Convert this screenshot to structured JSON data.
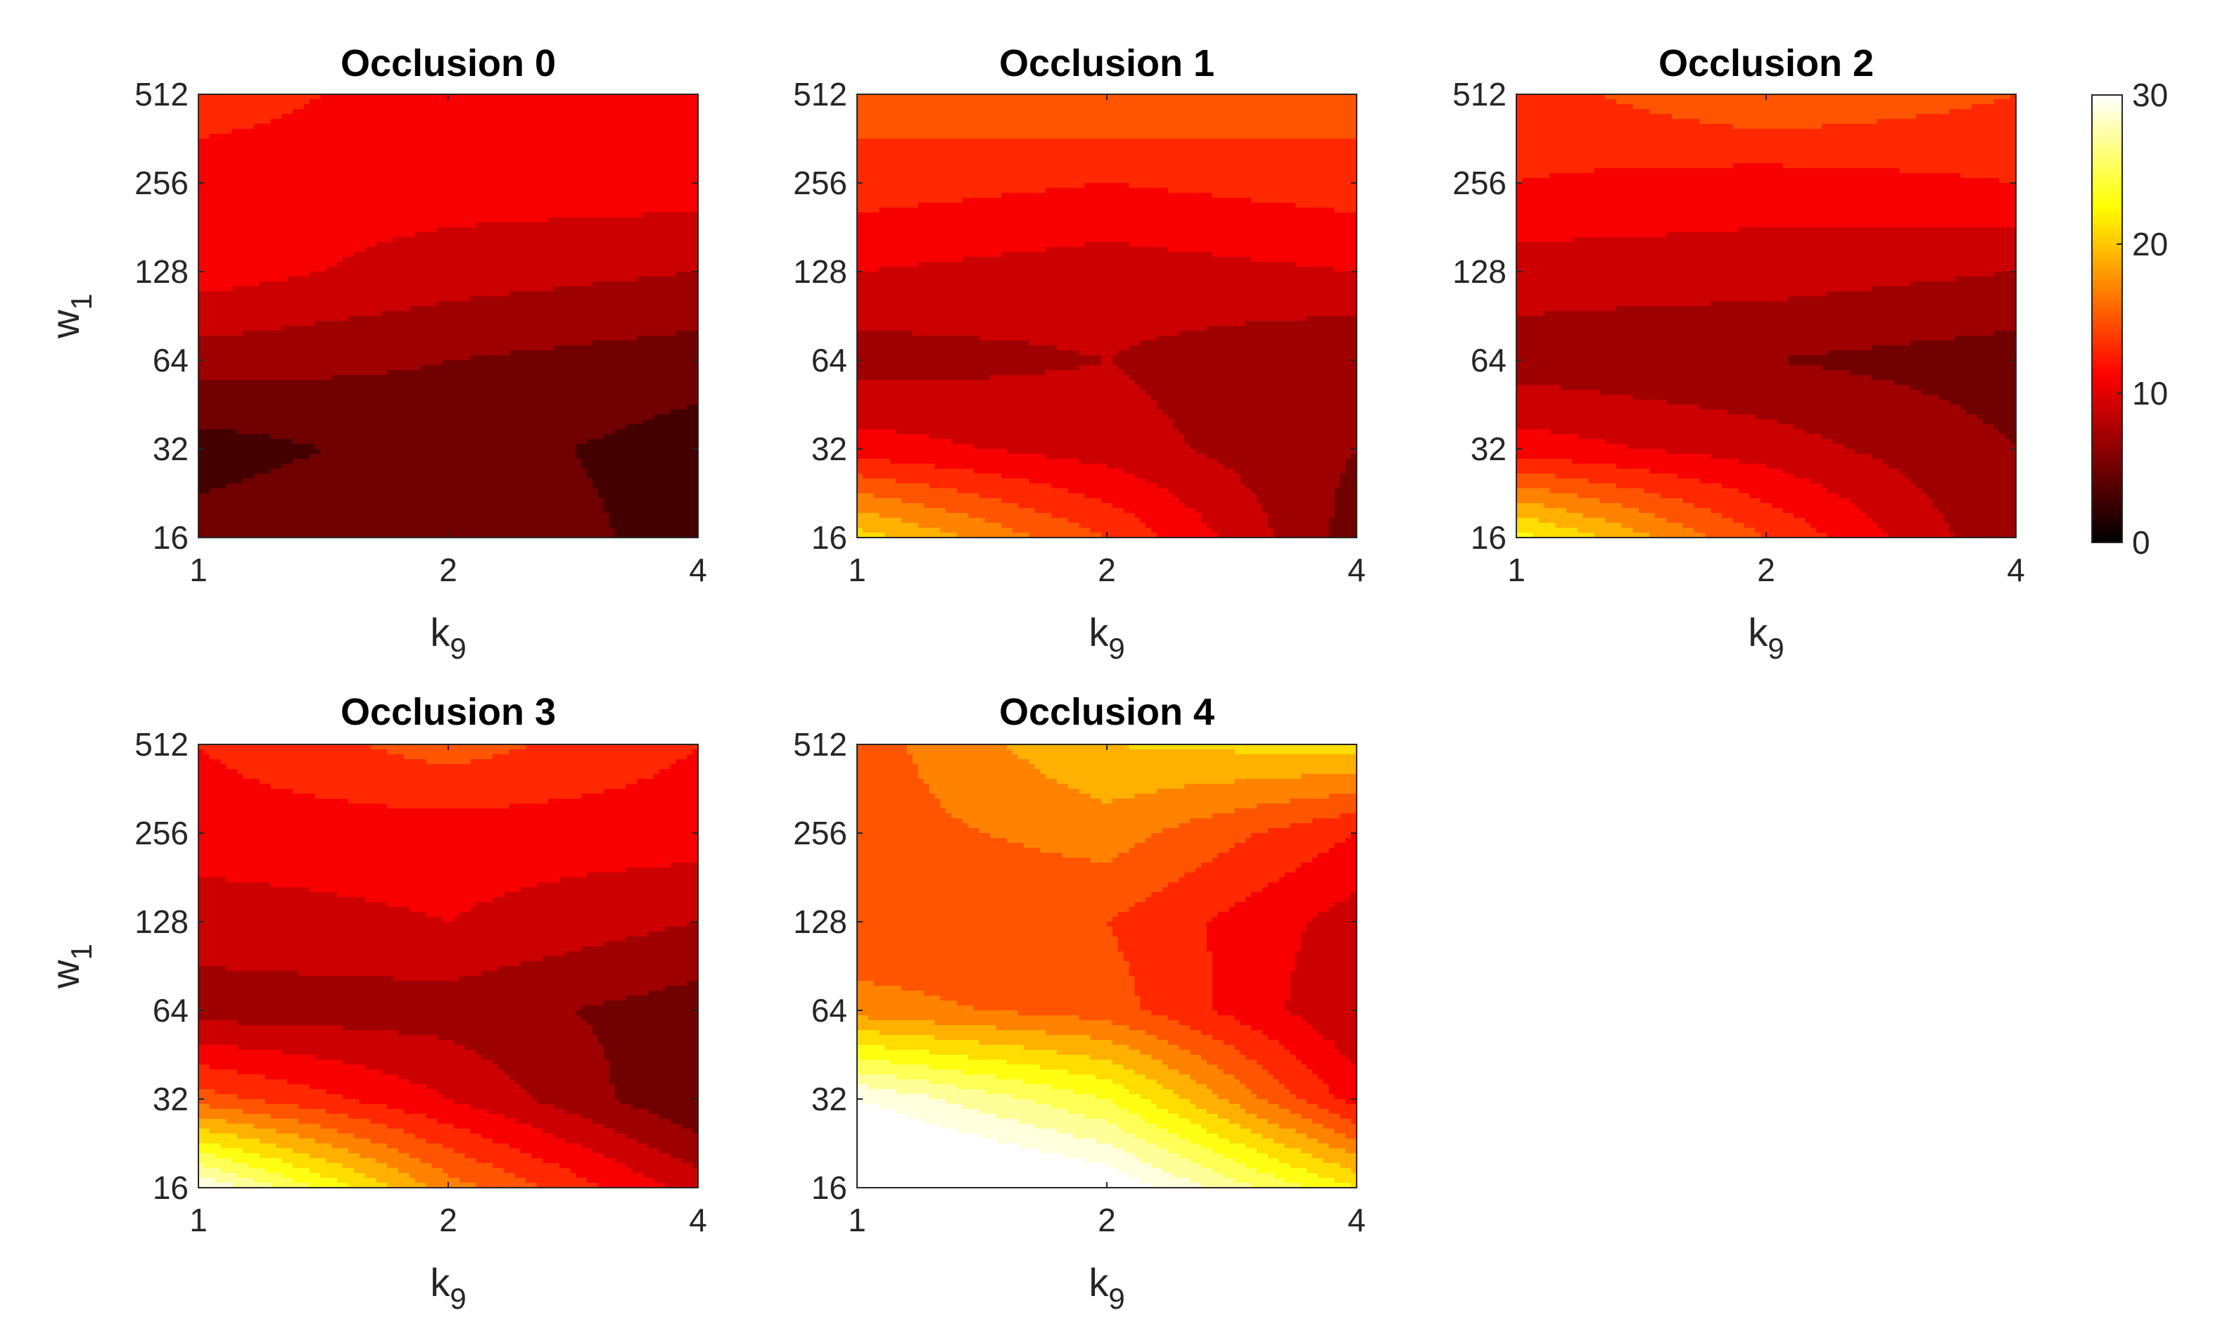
{
  "chart_data": [
    {
      "type": "heatmap",
      "title": "Occlusion 0",
      "x": [
        1,
        2,
        4
      ],
      "y": [
        16,
        32,
        64,
        128,
        256,
        512
      ],
      "xlabel": "k",
      "xlabel_sub": "9",
      "ylabel": "w",
      "ylabel_sub": "1",
      "xscale": "log2",
      "yscale": "log2",
      "z": [
        [
          5,
          6,
          3
        ],
        [
          3,
          5,
          3
        ],
        [
          7,
          6,
          5
        ],
        [
          11,
          9,
          8
        ],
        [
          11,
          11,
          11
        ],
        [
          13,
          11,
          12
        ]
      ]
    },
    {
      "type": "heatmap",
      "title": "Occlusion 1",
      "x": [
        1,
        2,
        4
      ],
      "y": [
        16,
        32,
        64,
        128,
        256,
        512
      ],
      "xlabel": "k",
      "xlabel_sub": "9",
      "ylabel": "",
      "ylabel_sub": "",
      "xscale": "log2",
      "yscale": "log2",
      "z": [
        [
          21,
          14,
          5
        ],
        [
          11,
          9,
          6
        ],
        [
          7,
          8,
          6
        ],
        [
          10,
          9,
          10
        ],
        [
          13,
          12,
          13
        ],
        [
          15,
          16,
          15
        ]
      ]
    },
    {
      "type": "heatmap",
      "title": "Occlusion 2",
      "x": [
        1,
        2,
        4
      ],
      "y": [
        16,
        32,
        64,
        128,
        256,
        512
      ],
      "xlabel": "k",
      "xlabel_sub": "9",
      "ylabel": "",
      "ylabel_sub": "",
      "xscale": "log2",
      "yscale": "log2",
      "z": [
        [
          23,
          14,
          6
        ],
        [
          11,
          9,
          6
        ],
        [
          7,
          6,
          5
        ],
        [
          9,
          9,
          8
        ],
        [
          12,
          11,
          12
        ],
        [
          13,
          16,
          14
        ]
      ]
    },
    {
      "type": "heatmap",
      "title": "Occlusion 3",
      "x": [
        1,
        2,
        4
      ],
      "y": [
        16,
        32,
        64,
        128,
        256,
        512
      ],
      "xlabel": "k",
      "xlabel_sub": "9",
      "ylabel": "w",
      "ylabel_sub": "1",
      "xscale": "log2",
      "yscale": "log2",
      "z": [
        [
          30,
          17,
          9
        ],
        [
          15,
          10,
          4
        ],
        [
          7,
          7,
          5
        ],
        [
          9,
          10,
          8
        ],
        [
          11,
          11,
          11
        ],
        [
          12,
          15,
          12
        ]
      ]
    },
    {
      "type": "heatmap",
      "title": "Occlusion 4",
      "x": [
        1,
        2,
        4
      ],
      "y": [
        16,
        32,
        64,
        128,
        256,
        512
      ],
      "xlabel": "k",
      "xlabel_sub": "9",
      "ylabel": "",
      "ylabel_sub": "",
      "xscale": "log2",
      "yscale": "log2",
      "z": [
        [
          36,
          32,
          22
        ],
        [
          30,
          24,
          11
        ],
        [
          17,
          15,
          8
        ],
        [
          14,
          14,
          9
        ],
        [
          15,
          17,
          12
        ],
        [
          15,
          20,
          21
        ]
      ]
    }
  ],
  "colorbar": {
    "colormap": "hot",
    "range": [
      0,
      30
    ],
    "ticks": [
      "0",
      "10",
      "20",
      "30"
    ]
  }
}
